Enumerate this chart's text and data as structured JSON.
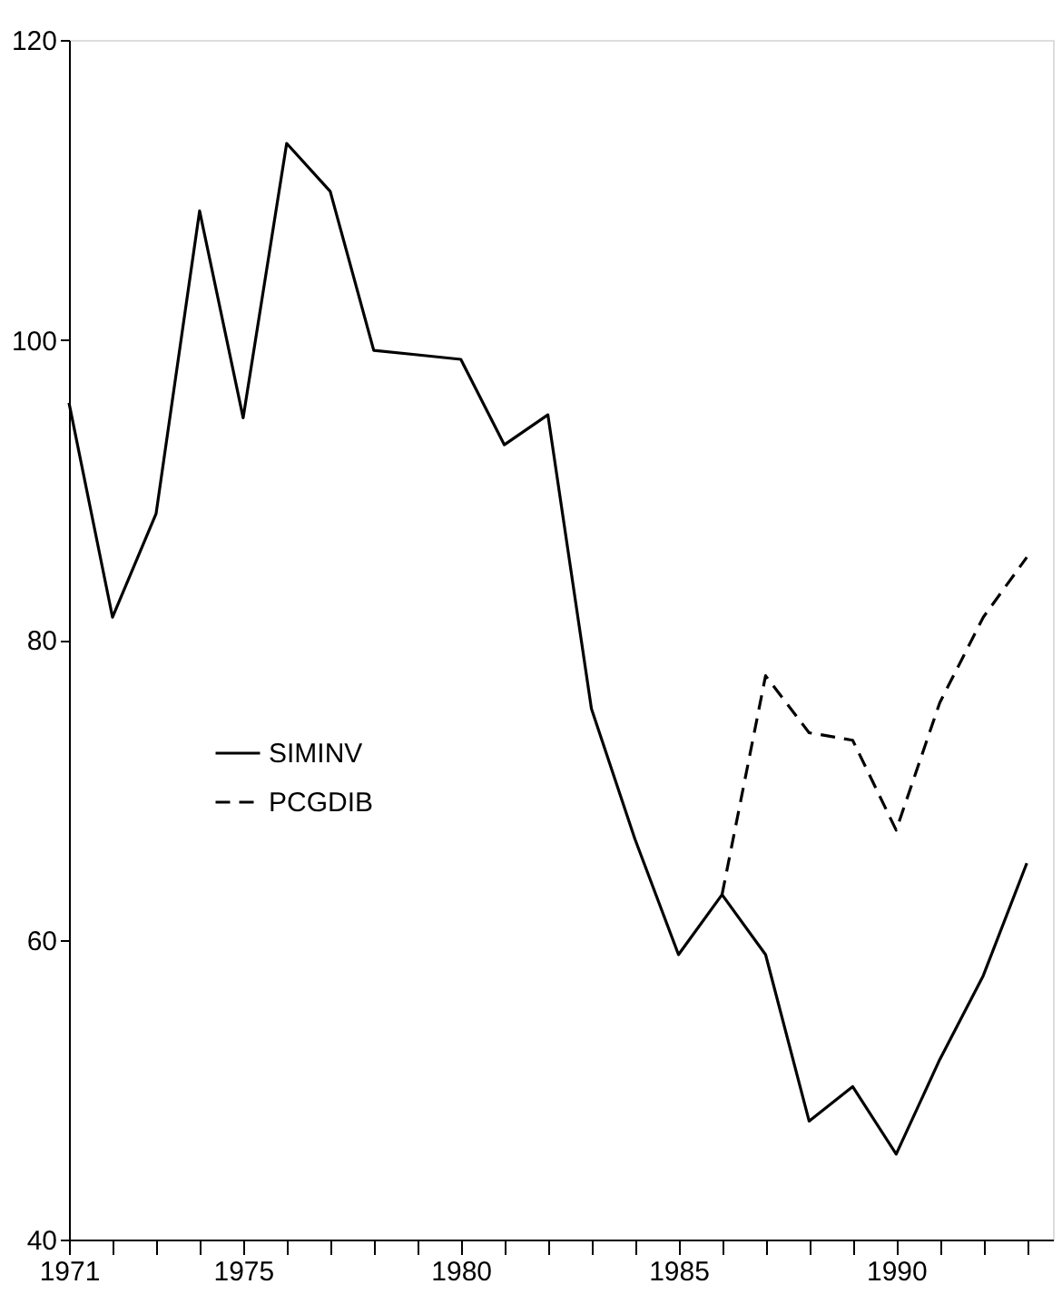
{
  "chart_data": {
    "type": "line",
    "x": [
      1971,
      1972,
      1973,
      1974,
      1975,
      1976,
      1977,
      1978,
      1979,
      1980,
      1981,
      1982,
      1983,
      1984,
      1985,
      1986,
      1987,
      1988,
      1989,
      1990,
      1991,
      1992,
      1993
    ],
    "series": [
      {
        "name": "SIMINV",
        "color": "#000000",
        "line_style": "solid",
        "values": [
          95.8,
          81.5,
          88.4,
          108.6,
          94.8,
          113.1,
          109.9,
          99.3,
          99.0,
          98.7,
          93.0,
          95.0,
          75.4,
          66.7,
          59.0,
          63.0,
          59.0,
          47.9,
          50.2,
          45.7,
          52.0,
          57.6,
          65.1
        ]
      },
      {
        "name": "PCGDIB",
        "color": "#000000",
        "line_style": "dashed",
        "values": [
          null,
          null,
          null,
          null,
          null,
          null,
          null,
          null,
          null,
          null,
          null,
          null,
          null,
          null,
          null,
          63.0,
          77.6,
          73.8,
          73.3,
          67.3,
          75.8,
          81.5,
          85.5
        ]
      }
    ],
    "xlim": [
      1971,
      1993.6
    ],
    "xticks": [
      1971,
      {
        "value": 1972,
        "label": null
      },
      {
        "value": 1973,
        "label": null
      },
      {
        "value": 1974,
        "label": null
      },
      1975,
      {
        "value": 1976,
        "label": null
      },
      {
        "value": 1977,
        "label": null
      },
      {
        "value": 1978,
        "label": null
      },
      {
        "value": 1979,
        "label": null
      },
      1980,
      {
        "value": 1981,
        "label": null
      },
      {
        "value": 1982,
        "label": null
      },
      {
        "value": 1983,
        "label": null
      },
      {
        "value": 1984,
        "label": null
      },
      1985,
      {
        "value": 1986,
        "label": null
      },
      {
        "value": 1987,
        "label": null
      },
      {
        "value": 1988,
        "label": null
      },
      {
        "value": 1989,
        "label": null
      },
      1990,
      {
        "value": 1991,
        "label": null
      },
      {
        "value": 1992,
        "label": null
      },
      {
        "value": 1993,
        "label": null
      }
    ],
    "ylim": [
      40,
      120
    ],
    "yticks": [
      40,
      60,
      80,
      100,
      120
    ],
    "grid": false,
    "legend": "left",
    "marker": "none"
  }
}
